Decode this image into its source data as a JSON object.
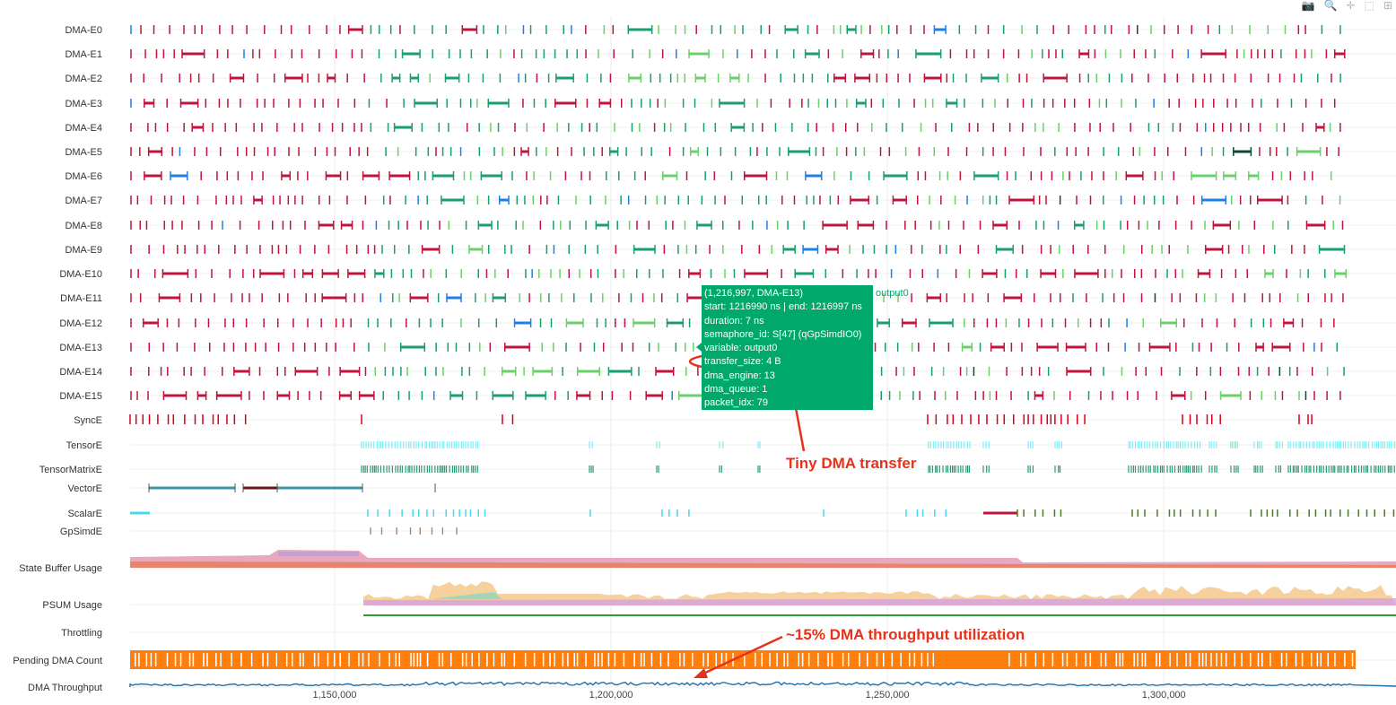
{
  "toolbar": {
    "camera_icon": "camera-icon",
    "zoom_icon": "zoom-icon",
    "pan_icon": "pan-icon",
    "select_icon": "box-select-icon",
    "plus_icon": "plus-icon"
  },
  "chart_data": {
    "type": "timeline",
    "rows": [
      "DMA-E0",
      "DMA-E1",
      "DMA-E2",
      "DMA-E3",
      "DMA-E4",
      "DMA-E5",
      "DMA-E6",
      "DMA-E7",
      "DMA-E8",
      "DMA-E9",
      "DMA-E10",
      "DMA-E11",
      "DMA-E12",
      "DMA-E13",
      "DMA-E14",
      "DMA-E15",
      "SyncE",
      "TensorE",
      "TensorMatrixE",
      "VectorE",
      "ScalarE",
      "GpSimdE",
      "State Buffer Usage",
      "PSUM Usage",
      "Throttling",
      "Pending DMA Count",
      "DMA Throughput"
    ],
    "x_ticks": [
      1150000,
      1200000,
      1250000,
      1300000
    ],
    "x_tick_labels": [
      "1,150,000",
      "1,200,000",
      "1,250,000",
      "1,300,000"
    ],
    "xlim": [
      1113000,
      1342000
    ],
    "grid": true,
    "colors": {
      "dma_red": "#c0143c",
      "dma_green": "#1a9e6e",
      "dma_light_green": "#6ad16a",
      "dma_blue": "#1f7fe8",
      "dma_dark": "#0c4a34",
      "tensor_cyan": "#7ff0f8",
      "matrix_teal": "#2a9a78",
      "vector_teal": "#3a96a6",
      "vector_dark": "#6b1414",
      "scalar_olive": "#4f7a2a",
      "pending_orange": "#ff7f0e",
      "throughput_blue": "#1f6fa8",
      "throttle_green": "#2ca02c"
    }
  },
  "tooltip": {
    "lines": [
      "(1,216,997, DMA-E13)",
      "start: 1216990 ns | end: 1216997 ns",
      "duration: 7 ns",
      "semaphore_id: S[47] (qGpSimdIO0)",
      "variable: output0",
      "transfer_size: 4 B",
      "dma_engine: 13",
      "dma_queue: 1",
      "packet_idx: 79"
    ],
    "trace_name": "output0"
  },
  "annotations": {
    "tiny_transfer": "Tiny DMA transfer",
    "throughput": "~15% DMA throughput utilization"
  }
}
